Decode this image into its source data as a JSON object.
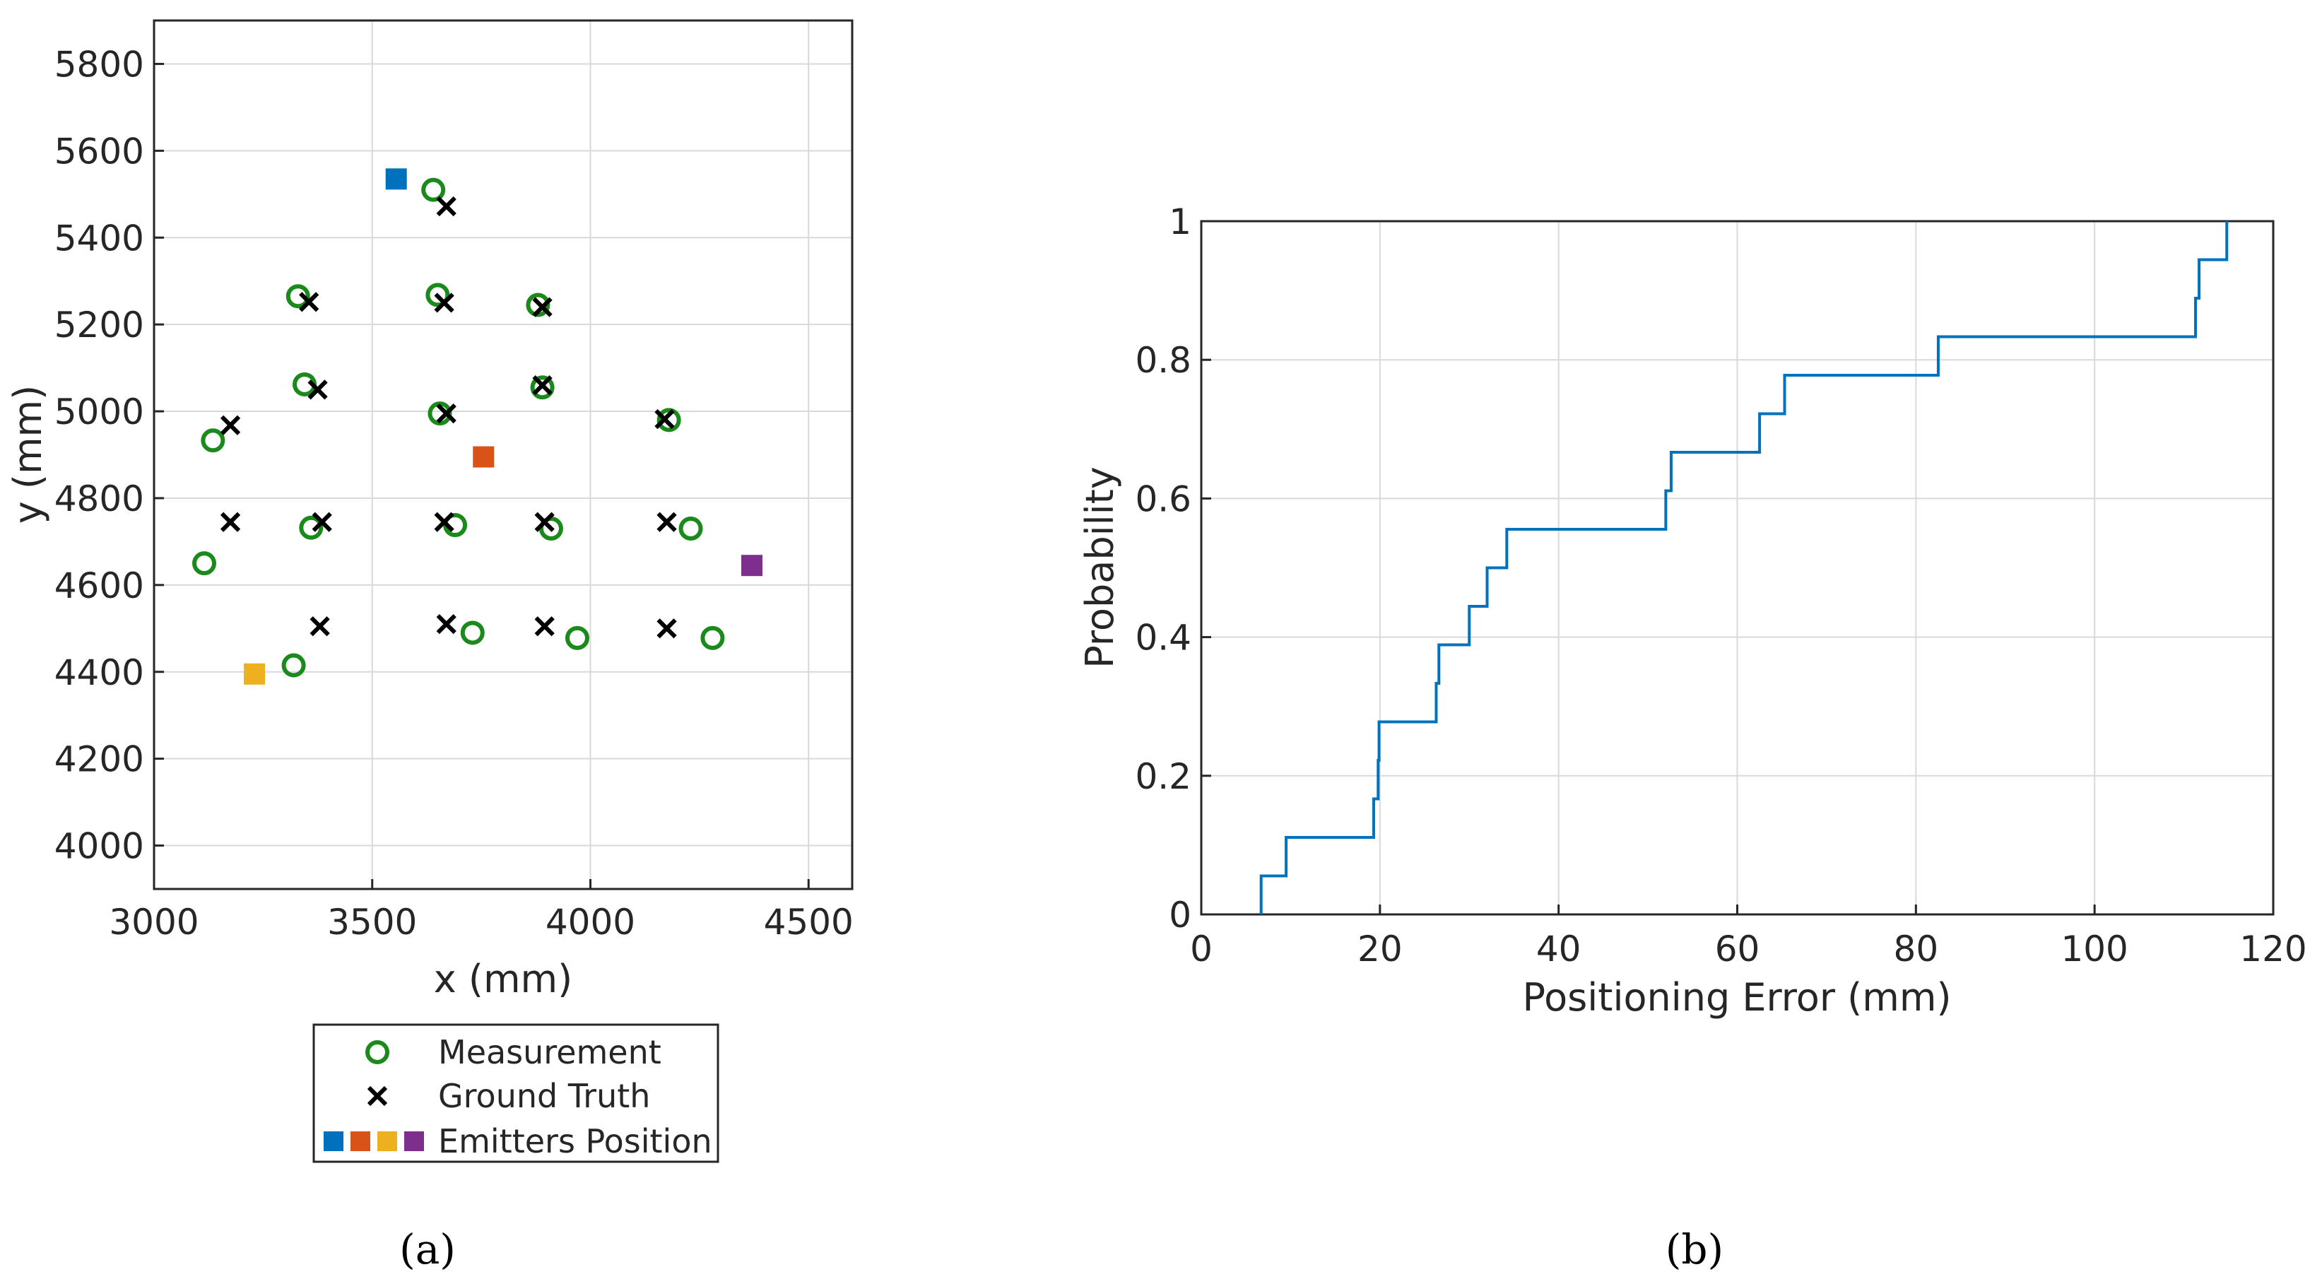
{
  "chart_data": [
    {
      "type": "scatter",
      "panel_label": "(a)",
      "xlabel": "x (mm)",
      "ylabel": "y (mm)",
      "xlim": [
        3000,
        4600
      ],
      "ylim": [
        3900,
        5900
      ],
      "xticks": [
        3000,
        3500,
        4000,
        4500
      ],
      "yticks": [
        4000,
        4200,
        4400,
        4600,
        4800,
        5000,
        5200,
        5400,
        5600,
        5800
      ],
      "grid": true,
      "legend_position": "below",
      "series": [
        {
          "name": "Measurement",
          "marker": "circle",
          "color": "#1a8a1a",
          "points": [
            [
              3640,
              5510
            ],
            [
              3330,
              5265
            ],
            [
              3650,
              5268
            ],
            [
              3880,
              5245
            ],
            [
              3345,
              5062
            ],
            [
              3655,
              4995
            ],
            [
              3890,
              5055
            ],
            [
              4180,
              4980
            ],
            [
              3135,
              4933
            ],
            [
              3360,
              4732
            ],
            [
              3690,
              4738
            ],
            [
              3910,
              4730
            ],
            [
              4230,
              4730
            ],
            [
              3115,
              4650
            ],
            [
              3320,
              4415
            ],
            [
              3730,
              4490
            ],
            [
              3970,
              4478
            ],
            [
              4280,
              4478
            ]
          ]
        },
        {
          "name": "Ground Truth",
          "marker": "x",
          "color": "#000000",
          "points": [
            [
              3670,
              5472
            ],
            [
              3355,
              5252
            ],
            [
              3665,
              5250
            ],
            [
              3890,
              5240
            ],
            [
              3375,
              5050
            ],
            [
              3670,
              4995
            ],
            [
              3890,
              5060
            ],
            [
              4170,
              4982
            ],
            [
              3175,
              4968
            ],
            [
              3175,
              4745
            ],
            [
              3385,
              4745
            ],
            [
              3665,
              4745
            ],
            [
              3895,
              4745
            ],
            [
              4175,
              4745
            ],
            [
              3380,
              4505
            ],
            [
              3670,
              4510
            ],
            [
              3895,
              4505
            ],
            [
              4175,
              4500
            ]
          ]
        },
        {
          "name": "Emitters Position",
          "marker": "square",
          "points": [
            {
              "x": 3555,
              "y": 5535,
              "color": "#0072bd"
            },
            {
              "x": 3755,
              "y": 4895,
              "color": "#d95319"
            },
            {
              "x": 3230,
              "y": 4395,
              "color": "#edb120"
            },
            {
              "x": 4370,
              "y": 4645,
              "color": "#7e2f8e"
            }
          ]
        }
      ]
    },
    {
      "type": "line",
      "style": "step",
      "panel_label": "(b)",
      "xlabel": "Positioning Error (mm)",
      "ylabel": "Probability",
      "xlim": [
        0,
        120
      ],
      "ylim": [
        0,
        1
      ],
      "xticks": [
        0,
        20,
        40,
        60,
        80,
        100,
        120
      ],
      "yticks": [
        0,
        0.2,
        0.4,
        0.6,
        0.8,
        1
      ],
      "ytick_labels": [
        "0",
        "0.2",
        "0.4",
        "0.6",
        "0.8",
        "1"
      ],
      "grid": true,
      "color": "#0072bd",
      "x": [
        6.7,
        9.5,
        19.3,
        19.8,
        19.9,
        26.3,
        26.6,
        30.0,
        32.0,
        34.2,
        52.0,
        52.6,
        62.5,
        65.3,
        82.5,
        111.3,
        111.7,
        114.8
      ],
      "y": [
        0.0556,
        0.1111,
        0.1667,
        0.2222,
        0.2778,
        0.3333,
        0.3889,
        0.4444,
        0.5,
        0.5556,
        0.6111,
        0.6667,
        0.7222,
        0.7778,
        0.8333,
        0.8889,
        0.9444,
        1.0
      ]
    }
  ]
}
